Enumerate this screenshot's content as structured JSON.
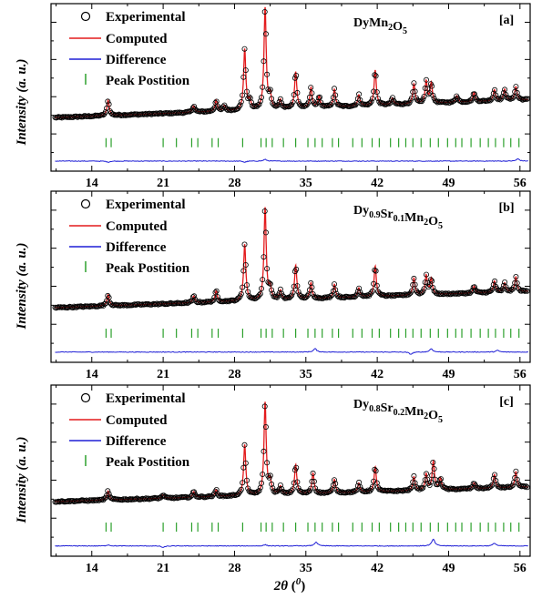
{
  "chart_data": [
    {
      "type": "line",
      "sample": {
        "base": "DyMn",
        "parts": [
          {
            "t": "Dy",
            "s": false
          },
          {
            "t": "Mn",
            "s": false
          },
          {
            "t": "2",
            "s": true
          },
          {
            "t": "O",
            "s": false
          },
          {
            "t": "5",
            "s": true
          }
        ]
      },
      "tag": "[a]",
      "xlim": [
        10,
        57
      ],
      "xticks": [
        "14",
        "21",
        "28",
        "35",
        "42",
        "49",
        "56"
      ],
      "xtick_values": [
        14,
        21,
        28,
        35,
        42,
        49,
        56
      ],
      "ylabel": "Intensity (a. u.)",
      "legend": {
        "experimental": "Experimental",
        "computed": "Computed",
        "difference": "Difference",
        "peaks": "Peak Postition"
      },
      "background": {
        "start": 0.08,
        "end": 0.55
      },
      "peaks": [
        {
          "x": 15.6,
          "h": 0.14
        },
        {
          "x": 24.0,
          "h": 0.06
        },
        {
          "x": 26.2,
          "h": 0.1
        },
        {
          "x": 27.0,
          "h": 0.05
        },
        {
          "x": 29.0,
          "h": 0.55
        },
        {
          "x": 29.5,
          "h": 0.08
        },
        {
          "x": 31.0,
          "h": 0.92
        },
        {
          "x": 31.5,
          "h": 0.12
        },
        {
          "x": 32.5,
          "h": 0.08
        },
        {
          "x": 34.0,
          "h": 0.33
        },
        {
          "x": 35.5,
          "h": 0.18
        },
        {
          "x": 36.3,
          "h": 0.1
        },
        {
          "x": 37.8,
          "h": 0.16
        },
        {
          "x": 40.2,
          "h": 0.1
        },
        {
          "x": 41.8,
          "h": 0.32
        },
        {
          "x": 43.5,
          "h": 0.06
        },
        {
          "x": 45.6,
          "h": 0.18
        },
        {
          "x": 46.8,
          "h": 0.2
        },
        {
          "x": 47.3,
          "h": 0.18
        },
        {
          "x": 49.8,
          "h": 0.06
        },
        {
          "x": 51.5,
          "h": 0.08
        },
        {
          "x": 53.5,
          "h": 0.1
        },
        {
          "x": 54.5,
          "h": 0.1
        },
        {
          "x": 55.6,
          "h": 0.12
        }
      ],
      "peak_positions": [
        15.4,
        15.9,
        21.0,
        22.3,
        23.8,
        24.4,
        25.8,
        26.4,
        28.8,
        30.6,
        31.1,
        31.7,
        32.8,
        34.0,
        35.2,
        35.9,
        36.6,
        37.6,
        38.2,
        39.6,
        40.5,
        41.5,
        42.2,
        43.3,
        44.1,
        44.8,
        45.5,
        46.3,
        47.2,
        48.0,
        48.9,
        49.7,
        50.3,
        51.2,
        52.1,
        52.9,
        53.6,
        54.4,
        55.1,
        55.9
      ],
      "diff_features": [
        {
          "x": 15.6,
          "a": -0.01
        },
        {
          "x": 29.0,
          "a": -0.01
        },
        {
          "x": 31.0,
          "a": 0.015
        },
        {
          "x": 55.8,
          "a": 0.02
        }
      ]
    },
    {
      "type": "line",
      "sample": {
        "parts": [
          {
            "t": "Dy",
            "s": false
          },
          {
            "t": "0.9",
            "s": true
          },
          {
            "t": "Sr",
            "s": false
          },
          {
            "t": "0.1",
            "s": true
          },
          {
            "t": "Mn",
            "s": false
          },
          {
            "t": "2",
            "s": true
          },
          {
            "t": "O",
            "s": false
          },
          {
            "t": "5",
            "s": true
          }
        ]
      },
      "tag": "[b]",
      "xlim": [
        10,
        57
      ],
      "xticks": [
        "14",
        "21",
        "28",
        "35",
        "42",
        "49",
        "56"
      ],
      "xtick_values": [
        14,
        21,
        28,
        35,
        42,
        49,
        56
      ],
      "ylabel": "Intensity (a. u.)",
      "legend": {
        "experimental": "Experimental",
        "computed": "Computed",
        "difference": "Difference",
        "peaks": "Peak Postition"
      },
      "background": {
        "start": 0.08,
        "end": 0.5
      },
      "peaks": [
        {
          "x": 15.6,
          "h": 0.1
        },
        {
          "x": 24.0,
          "h": 0.06
        },
        {
          "x": 26.2,
          "h": 0.1
        },
        {
          "x": 29.0,
          "h": 0.5
        },
        {
          "x": 31.0,
          "h": 0.82
        },
        {
          "x": 31.5,
          "h": 0.1
        },
        {
          "x": 32.5,
          "h": 0.08
        },
        {
          "x": 34.0,
          "h": 0.3
        },
        {
          "x": 35.5,
          "h": 0.14
        },
        {
          "x": 37.8,
          "h": 0.12
        },
        {
          "x": 40.2,
          "h": 0.08
        },
        {
          "x": 41.8,
          "h": 0.27
        },
        {
          "x": 45.6,
          "h": 0.15
        },
        {
          "x": 46.8,
          "h": 0.17
        },
        {
          "x": 47.3,
          "h": 0.14
        },
        {
          "x": 51.5,
          "h": 0.06
        },
        {
          "x": 53.5,
          "h": 0.1
        },
        {
          "x": 54.5,
          "h": 0.08
        },
        {
          "x": 55.6,
          "h": 0.13
        }
      ],
      "peak_positions": [
        15.4,
        15.9,
        21.0,
        22.3,
        23.8,
        24.4,
        25.8,
        26.4,
        28.8,
        30.6,
        31.1,
        31.7,
        32.8,
        34.0,
        35.2,
        35.9,
        36.6,
        37.6,
        38.2,
        39.6,
        40.5,
        41.5,
        42.2,
        43.3,
        44.1,
        44.8,
        45.5,
        46.3,
        47.2,
        48.0,
        48.9,
        49.7,
        50.3,
        51.2,
        52.1,
        52.9,
        53.6,
        54.4,
        55.1,
        55.9
      ],
      "diff_features": [
        {
          "x": 35.9,
          "a": 0.03
        },
        {
          "x": 45.3,
          "a": -0.02
        },
        {
          "x": 47.3,
          "a": 0.03
        },
        {
          "x": 53.8,
          "a": 0.015
        }
      ]
    },
    {
      "type": "line",
      "sample": {
        "parts": [
          {
            "t": "Dy",
            "s": false
          },
          {
            "t": "0.8",
            "s": true
          },
          {
            "t": "Sr",
            "s": false
          },
          {
            "t": "0.2",
            "s": true
          },
          {
            "t": "Mn",
            "s": false
          },
          {
            "t": "2",
            "s": true
          },
          {
            "t": "O",
            "s": false
          },
          {
            "t": "5",
            "s": true
          }
        ]
      },
      "tag": "[c]",
      "xlim": [
        10,
        57
      ],
      "xticks": [
        "14",
        "21",
        "28",
        "35",
        "42",
        "49",
        "56"
      ],
      "xtick_values": [
        14,
        21,
        28,
        35,
        42,
        49,
        56
      ],
      "ylabel": "Intensity (a. u.)",
      "xlabel": "2θ (⁰)",
      "legend": {
        "experimental": "Experimental",
        "computed": "Computed",
        "difference": "Difference",
        "peaks": "Peak Postition"
      },
      "background": {
        "start": 0.08,
        "end": 0.45
      },
      "peaks": [
        {
          "x": 15.6,
          "h": 0.08
        },
        {
          "x": 21.0,
          "h": 0.03
        },
        {
          "x": 24.0,
          "h": 0.05
        },
        {
          "x": 26.2,
          "h": 0.06
        },
        {
          "x": 29.0,
          "h": 0.45
        },
        {
          "x": 31.0,
          "h": 0.82
        },
        {
          "x": 31.5,
          "h": 0.12
        },
        {
          "x": 32.5,
          "h": 0.07
        },
        {
          "x": 34.0,
          "h": 0.26
        },
        {
          "x": 35.7,
          "h": 0.18
        },
        {
          "x": 37.8,
          "h": 0.12
        },
        {
          "x": 40.2,
          "h": 0.08
        },
        {
          "x": 41.8,
          "h": 0.22
        },
        {
          "x": 45.6,
          "h": 0.12
        },
        {
          "x": 46.8,
          "h": 0.14
        },
        {
          "x": 47.5,
          "h": 0.25
        },
        {
          "x": 48.2,
          "h": 0.1
        },
        {
          "x": 51.5,
          "h": 0.05
        },
        {
          "x": 53.5,
          "h": 0.12
        },
        {
          "x": 55.6,
          "h": 0.14
        }
      ],
      "peak_positions": [
        15.4,
        15.9,
        21.0,
        22.3,
        23.8,
        24.4,
        25.8,
        26.4,
        28.8,
        30.6,
        31.1,
        31.7,
        32.8,
        34.0,
        35.2,
        35.9,
        36.6,
        37.6,
        38.2,
        39.6,
        40.5,
        41.5,
        42.2,
        43.3,
        44.1,
        44.8,
        45.5,
        46.3,
        47.2,
        48.0,
        48.9,
        49.7,
        50.3,
        51.2,
        52.1,
        52.9,
        53.6,
        54.4,
        55.1,
        55.9
      ],
      "diff_features": [
        {
          "x": 15.6,
          "a": 0.01
        },
        {
          "x": 21.0,
          "a": -0.015
        },
        {
          "x": 31.0,
          "a": 0.01
        },
        {
          "x": 36.0,
          "a": 0.035
        },
        {
          "x": 47.5,
          "a": 0.06
        },
        {
          "x": 53.5,
          "a": 0.025
        }
      ]
    }
  ],
  "colors": {
    "experimental": "#000000",
    "computed": "#e31a1c",
    "difference": "#1f1fd6",
    "peaks": "#2ca02c",
    "axis": "#000000"
  }
}
